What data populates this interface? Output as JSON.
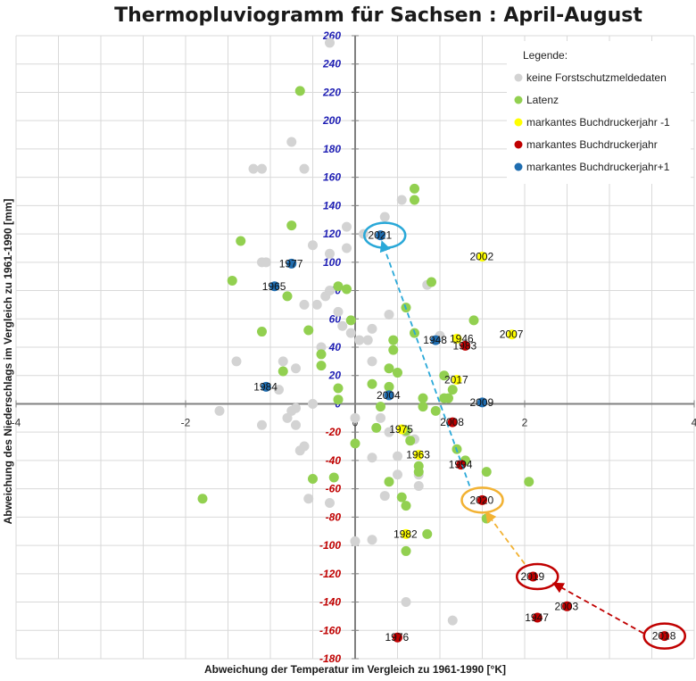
{
  "chart_data": {
    "type": "scatter",
    "title": "Thermopluviogramm für Sachsen : April-August",
    "xlabel": "Abweichung der Temperatur im Vergleich zu 1961-1990 [°K]",
    "ylabel": "Abweichung des Niederschlags im Vergleich zu 1961-1990 [mm]",
    "xlim": [
      -4,
      4
    ],
    "ylim": [
      -180,
      260
    ],
    "x_ticks": [
      "-4",
      "-2",
      "0",
      "2",
      "4"
    ],
    "x_tick_values": [
      -4,
      -2,
      0,
      2,
      4
    ],
    "y_ticks": [
      "260",
      "240",
      "220",
      "200",
      "180",
      "160",
      "140",
      "120",
      "100",
      "80",
      "60",
      "40",
      "20",
      "0",
      "-20",
      "-40",
      "-60",
      "-80",
      "-100",
      "-120",
      "-140",
      "-160",
      "-180"
    ],
    "y_tick_values": [
      260,
      240,
      220,
      200,
      180,
      160,
      140,
      120,
      100,
      80,
      60,
      40,
      20,
      0,
      -20,
      -40,
      -60,
      -80,
      -100,
      -120,
      -140,
      -160,
      -180
    ],
    "grid": true,
    "legend": {
      "title": "Legende:",
      "position": "top-right",
      "entries": [
        "keine Forstschutzmeldedaten",
        "Latenz",
        "markantes Buchdruckerjahr -1",
        "markantes Buchdruckerjahr",
        "markantes Buchdruckerjahr+1"
      ]
    },
    "colors": {
      "grey": "#d3d3d3",
      "green": "#92d050",
      "yellow": "#ffff00",
      "red": "#c00000",
      "blue": "#1f6db0",
      "ytick_positive": "#1f1fb4",
      "ytick_negative": "#c00000",
      "circle_blue": "#29a8d8",
      "circle_orange": "#f2b233",
      "circle_red": "#c00000"
    },
    "series": [
      {
        "name": "keine Forstschutzmeldedaten",
        "color": "grey",
        "points": [
          [
            -0.3,
            255
          ],
          [
            -0.75,
            185
          ],
          [
            -1.2,
            166
          ],
          [
            -1.1,
            166
          ],
          [
            -0.6,
            166
          ],
          [
            -0.1,
            125
          ],
          [
            0.1,
            120
          ],
          [
            0.35,
            132
          ],
          [
            0.55,
            144
          ],
          [
            -0.5,
            112
          ],
          [
            -0.3,
            106
          ],
          [
            -0.1,
            110
          ],
          [
            -1.1,
            100
          ],
          [
            -1.05,
            100
          ],
          [
            -0.6,
            70
          ],
          [
            -0.45,
            70
          ],
          [
            -0.35,
            76
          ],
          [
            -0.2,
            65
          ],
          [
            -0.15,
            55
          ],
          [
            -0.05,
            50
          ],
          [
            0.05,
            45
          ],
          [
            0.15,
            45
          ],
          [
            0.2,
            53
          ],
          [
            0.4,
            63
          ],
          [
            0.85,
            84
          ],
          [
            1.0,
            48
          ],
          [
            -0.4,
            40
          ],
          [
            -0.85,
            30
          ],
          [
            -0.7,
            25
          ],
          [
            -1.4,
            30
          ],
          [
            -1.6,
            -5
          ],
          [
            -0.7,
            -3
          ],
          [
            -0.5,
            0
          ],
          [
            -0.75,
            -5
          ],
          [
            -0.7,
            -15
          ],
          [
            -0.8,
            -10
          ],
          [
            -1.1,
            -15
          ],
          [
            -0.9,
            10
          ],
          [
            0.0,
            -10
          ],
          [
            0.3,
            -10
          ],
          [
            0.4,
            -20
          ],
          [
            0.6,
            -20
          ],
          [
            0.7,
            -25
          ],
          [
            -0.6,
            -30
          ],
          [
            -0.65,
            -33
          ],
          [
            0.2,
            -38
          ],
          [
            0.5,
            -37
          ],
          [
            0.5,
            -50
          ],
          [
            0.75,
            -50
          ],
          [
            -0.55,
            -67
          ],
          [
            -0.3,
            -70
          ],
          [
            0.75,
            -58
          ],
          [
            0.2,
            -96
          ],
          [
            0.0,
            -97
          ],
          [
            0.6,
            -140
          ],
          [
            1.15,
            -153
          ],
          [
            0.35,
            -65
          ],
          [
            0.2,
            30
          ],
          [
            -0.3,
            80
          ]
        ]
      },
      {
        "name": "Latenz",
        "color": "green",
        "points": [
          [
            -0.65,
            221
          ],
          [
            -0.75,
            126
          ],
          [
            -1.35,
            115
          ],
          [
            -1.45,
            87
          ],
          [
            -0.8,
            76
          ],
          [
            -0.85,
            23
          ],
          [
            -0.4,
            27
          ],
          [
            -0.55,
            52
          ],
          [
            -0.4,
            35
          ],
          [
            -0.1,
            81
          ],
          [
            -0.2,
            83
          ],
          [
            -0.05,
            59
          ],
          [
            -0.2,
            11
          ],
          [
            -0.2,
            3
          ],
          [
            -1.1,
            51
          ],
          [
            -1.8,
            -67
          ],
          [
            -0.5,
            -53
          ],
          [
            -0.25,
            -52
          ],
          [
            0.0,
            -28
          ],
          [
            0.25,
            -17
          ],
          [
            0.3,
            -2
          ],
          [
            0.2,
            14
          ],
          [
            0.4,
            12
          ],
          [
            0.4,
            25
          ],
          [
            0.5,
            22
          ],
          [
            0.8,
            4
          ],
          [
            1.05,
            4
          ],
          [
            1.05,
            20
          ],
          [
            1.15,
            10
          ],
          [
            1.1,
            4
          ],
          [
            0.75,
            -44
          ],
          [
            0.75,
            -48
          ],
          [
            0.55,
            -66
          ],
          [
            0.6,
            -72
          ],
          [
            0.6,
            -104
          ],
          [
            0.85,
            -92
          ],
          [
            0.6,
            -19
          ],
          [
            0.65,
            -26
          ],
          [
            0.8,
            -2
          ],
          [
            0.95,
            -5
          ],
          [
            0.45,
            45
          ],
          [
            0.45,
            38
          ],
          [
            0.6,
            68
          ],
          [
            0.7,
            50
          ],
          [
            0.7,
            144
          ],
          [
            0.7,
            152
          ],
          [
            0.9,
            86
          ],
          [
            1.3,
            -40
          ],
          [
            1.2,
            -32
          ],
          [
            1.55,
            -48
          ],
          [
            1.55,
            -81
          ],
          [
            1.4,
            59
          ],
          [
            2.05,
            -55
          ],
          [
            0.4,
            -55
          ]
        ]
      },
      {
        "name": "markantes Buchdruckerjahr -1",
        "color": "yellow",
        "points": [
          [
            1.5,
            104
          ],
          [
            1.85,
            49
          ],
          [
            1.2,
            17
          ],
          [
            1.2,
            46
          ],
          [
            0.55,
            -18
          ],
          [
            0.75,
            -36
          ],
          [
            0.6,
            -92
          ]
        ]
      },
      {
        "name": "markantes Buchdruckerjahr",
        "color": "red",
        "points": [
          [
            1.3,
            41
          ],
          [
            1.15,
            -13
          ],
          [
            1.25,
            -43
          ],
          [
            1.5,
            -68
          ],
          [
            2.1,
            -122
          ],
          [
            2.5,
            -143
          ],
          [
            2.15,
            -151
          ],
          [
            0.5,
            -165
          ],
          [
            3.65,
            -164
          ]
        ]
      },
      {
        "name": "markantes Buchdruckerjahr+1",
        "color": "blue",
        "points": [
          [
            0.3,
            119
          ],
          [
            -0.75,
            99
          ],
          [
            -0.95,
            83
          ],
          [
            -1.05,
            12
          ],
          [
            0.4,
            6
          ],
          [
            1.5,
            1
          ],
          [
            0.95,
            45
          ]
        ]
      }
    ],
    "annotations": [
      {
        "text": "2021",
        "x": 0.3,
        "y": 119,
        "dx": -14,
        "dy": 4
      },
      {
        "text": "1977",
        "x": -0.75,
        "y": 99,
        "dx": -14,
        "dy": 4
      },
      {
        "text": "1965",
        "x": -0.95,
        "y": 83,
        "dx": -14,
        "dy": 4
      },
      {
        "text": "1984",
        "x": -1.05,
        "y": 12,
        "dx": -14,
        "dy": 4
      },
      {
        "text": "2004",
        "x": 0.4,
        "y": 6,
        "dx": -14,
        "dy": 4
      },
      {
        "text": "2009",
        "x": 1.5,
        "y": 1,
        "dx": -14,
        "dy": 4
      },
      {
        "text": "1948",
        "x": 0.95,
        "y": 45,
        "dx": -14,
        "dy": 4
      },
      {
        "text": "1946",
        "x": 1.2,
        "y": 46,
        "dx": -8,
        "dy": 4
      },
      {
        "text": "1983",
        "x": 1.3,
        "y": 41,
        "dx": -14,
        "dy": 4
      },
      {
        "text": "2002",
        "x": 1.5,
        "y": 104,
        "dx": -14,
        "dy": 4
      },
      {
        "text": "2007",
        "x": 1.85,
        "y": 49,
        "dx": -14,
        "dy": 4
      },
      {
        "text": "2017",
        "x": 1.2,
        "y": 17,
        "dx": -14,
        "dy": 4
      },
      {
        "text": "2008",
        "x": 1.15,
        "y": -13,
        "dx": -14,
        "dy": 4
      },
      {
        "text": "1975",
        "x": 0.55,
        "y": -18,
        "dx": -14,
        "dy": 4
      },
      {
        "text": "1963",
        "x": 0.75,
        "y": -36,
        "dx": -14,
        "dy": 4
      },
      {
        "text": "1994",
        "x": 1.25,
        "y": -43,
        "dx": -14,
        "dy": 4
      },
      {
        "text": "2020",
        "x": 1.5,
        "y": -68,
        "dx": -14,
        "dy": 4
      },
      {
        "text": "1982",
        "x": 0.6,
        "y": -92,
        "dx": -14,
        "dy": 4
      },
      {
        "text": "2019",
        "x": 2.1,
        "y": -122,
        "dx": -14,
        "dy": 4
      },
      {
        "text": "2003",
        "x": 2.5,
        "y": -143,
        "dx": -14,
        "dy": 4
      },
      {
        "text": "1947",
        "x": 2.15,
        "y": -151,
        "dx": -14,
        "dy": 4
      },
      {
        "text": "1976",
        "x": 0.5,
        "y": -165,
        "dx": -14,
        "dy": 4
      },
      {
        "text": "2018",
        "x": 3.65,
        "y": -164,
        "dx": -14,
        "dy": 4
      }
    ],
    "highlight_circles": [
      {
        "x": 0.35,
        "y": 119,
        "color": "circle_blue"
      },
      {
        "x": 1.5,
        "y": -68,
        "color": "circle_orange"
      },
      {
        "x": 2.15,
        "y": -122,
        "color": "circle_red"
      },
      {
        "x": 3.65,
        "y": -164,
        "color": "circle_red"
      }
    ],
    "arrows": [
      {
        "from": [
          3.4,
          -162
        ],
        "to": [
          2.35,
          -127
        ],
        "color": "circle_red"
      },
      {
        "from": [
          2.0,
          -113
        ],
        "to": [
          1.55,
          -77
        ],
        "color": "circle_orange"
      },
      {
        "from": [
          1.35,
          -58
        ],
        "to": [
          0.32,
          114
        ],
        "color": "circle_blue"
      }
    ]
  }
}
